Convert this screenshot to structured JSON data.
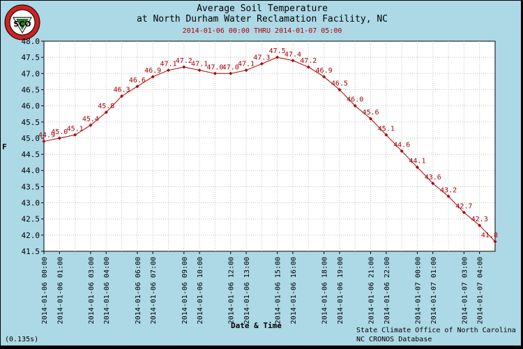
{
  "title_line1": "Average Soil Temperature",
  "title_line2": "at North Durham Water Reclamation Facility, NC",
  "subtitle": "2014-01-06 00:00 THRU 2014-01-07 05:00",
  "credit_line1": "State Climate Office of North Carolina",
  "credit_line2": "NC CRONOS Database",
  "render_time": "(0.135s)",
  "logo_text": "SCO",
  "colors": {
    "background": "#add8e6",
    "plot_bg": "#ffffff",
    "series": "#aa0000",
    "grid": "#c0c0c0"
  },
  "chart_data": {
    "type": "line",
    "title": "Average Soil Temperature at North Durham Water Reclamation Facility, NC",
    "xlabel": "Date & Time",
    "ylabel": "F",
    "ylim": [
      41.5,
      48.0
    ],
    "yticks": [
      "41.5",
      "42.0",
      "42.5",
      "43.0",
      "43.5",
      "44.0",
      "44.5",
      "45.0",
      "45.5",
      "46.0",
      "46.5",
      "47.0",
      "47.5",
      "48.0"
    ],
    "xticks": [
      "2014-01-06 00:00",
      "2014-01-06 01:00",
      "2014-01-06 03:00",
      "2014-01-06 04:00",
      "2014-01-06 06:00",
      "2014-01-06 07:00",
      "2014-01-06 09:00",
      "2014-01-06 10:00",
      "2014-01-06 12:00",
      "2014-01-06 13:00",
      "2014-01-06 15:00",
      "2014-01-06 16:00",
      "2014-01-06 18:00",
      "2014-01-06 19:00",
      "2014-01-06 21:00",
      "2014-01-06 22:00",
      "2014-01-07 00:00",
      "2014-01-07 01:00",
      "2014-01-07 03:00",
      "2014-01-07 04:00"
    ],
    "grid": true,
    "series": [
      {
        "values": [
          44.9,
          45.0,
          45.1,
          45.4,
          45.8,
          46.3,
          46.6,
          46.9,
          47.1,
          47.2,
          47.1,
          47.0,
          47.0,
          47.1,
          47.3,
          47.5,
          47.4,
          47.2,
          46.9,
          46.5,
          46.0,
          45.6,
          45.1,
          44.6,
          44.1,
          43.6,
          43.2,
          42.7,
          42.3,
          41.8
        ],
        "labels": [
          "44.9",
          "45.0",
          "45.1",
          "45.4",
          "45.8",
          "46.3",
          "46.6",
          "46.9",
          "47.1",
          "47.2",
          "47.1",
          "47.0",
          "47.0",
          "47.1",
          "47.3",
          "47.5",
          "47.4",
          "47.2",
          "46.9",
          "46.5",
          "46.0",
          "45.6",
          "45.1",
          "44.6",
          "44.1",
          "43.6",
          "43.2",
          "42.7",
          "42.3",
          "41.8"
        ]
      }
    ]
  }
}
